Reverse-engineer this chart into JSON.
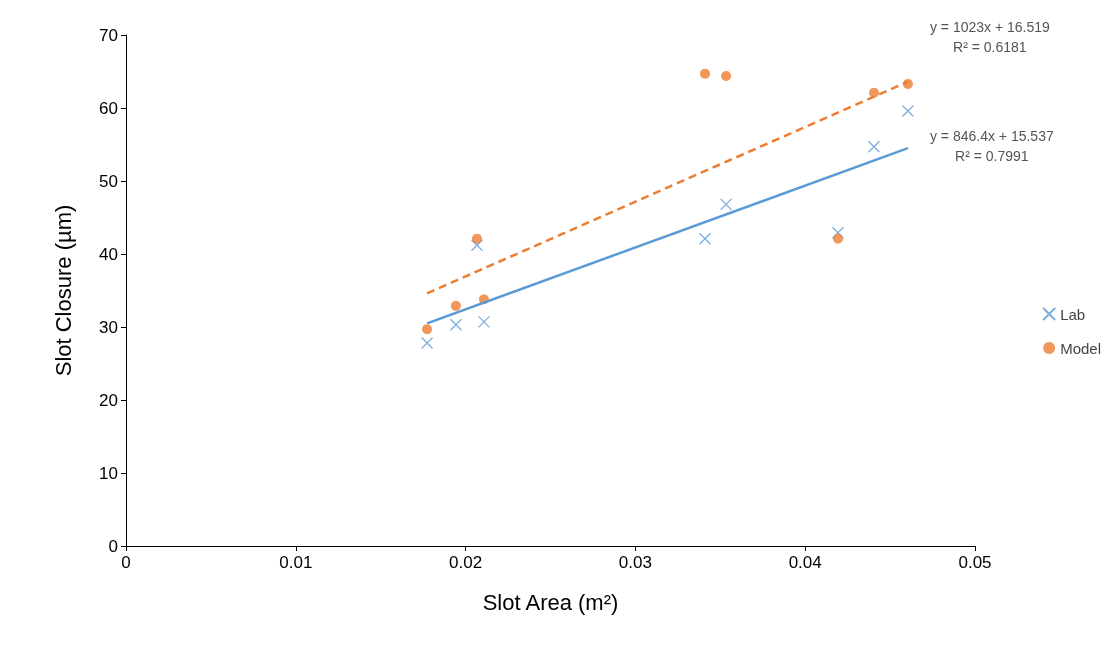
{
  "chart_data": {
    "type": "scatter",
    "xlabel": "Slot Area (m²)",
    "ylabel": "Slot Closure (µm)",
    "xlim": [
      0,
      0.05
    ],
    "xticks": [
      0,
      0.01,
      0.02,
      0.03,
      0.04,
      0.05
    ],
    "ylim": [
      0,
      70
    ],
    "yticks": [
      0,
      10,
      20,
      30,
      40,
      50,
      60,
      70
    ],
    "grid": false,
    "legend": "right",
    "series": [
      {
        "name": "Lab",
        "color": "#5b9bd5",
        "marker": "cross",
        "x": [
          0.01773,
          0.01943,
          0.02108,
          0.02067,
          0.0341,
          0.03534,
          0.04193,
          0.04405,
          0.04605
        ],
        "values": [
          27.8,
          30.3,
          30.7,
          41.2,
          42.1,
          46.8,
          42.9,
          54.7,
          59.6
        ]
      },
      {
        "name": "Model",
        "color": "#ed7d31",
        "marker": "circle",
        "x": [
          0.01773,
          0.01943,
          0.02108,
          0.02067,
          0.0341,
          0.03534,
          0.04193,
          0.04405,
          0.04605
        ],
        "values": [
          29.7,
          32.9,
          33.8,
          42.1,
          64.7,
          64.4,
          42.1,
          62.1,
          63.3
        ]
      },
      {
        "type": "line",
        "color": "#5b9bd5",
        "line_style": "solid",
        "marker": "none",
        "x": [
          0.01773,
          0.04605
        ],
        "values": [
          30.5,
          54.5
        ]
      },
      {
        "type": "line",
        "color": "#ed7d31",
        "line_style": "dashed",
        "marker": "none",
        "x": [
          0.01773,
          0.04605
        ],
        "values": [
          34.6,
          63.6
        ]
      }
    ],
    "annotations": [
      {
        "text": "y = 1023x + 16.519\nR² = 0.6181",
        "x": 0.04605,
        "y": 63.6
      },
      {
        "text": "y = 846.4x + 15.537\nR² = 0.7991",
        "x": 0.04605,
        "y": 54.5
      }
    ]
  }
}
